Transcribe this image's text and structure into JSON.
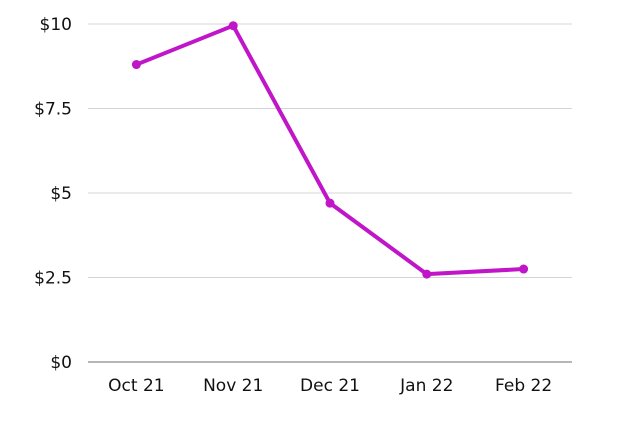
{
  "chart_data": {
    "type": "line",
    "categories": [
      "Oct 21",
      "Nov 21",
      "Dec 21",
      "Jan 22",
      "Feb 22"
    ],
    "series": [
      {
        "values": [
          8.8,
          9.95,
          4.7,
          2.6,
          2.75
        ]
      }
    ],
    "y_ticks": [
      0,
      2.5,
      5,
      7.5,
      10
    ],
    "y_tick_labels": [
      "$0",
      "$2.5",
      "$5",
      "$7.5",
      "$10"
    ],
    "ylim": [
      0,
      10
    ],
    "grid": true,
    "line_color": "#c015c8"
  }
}
